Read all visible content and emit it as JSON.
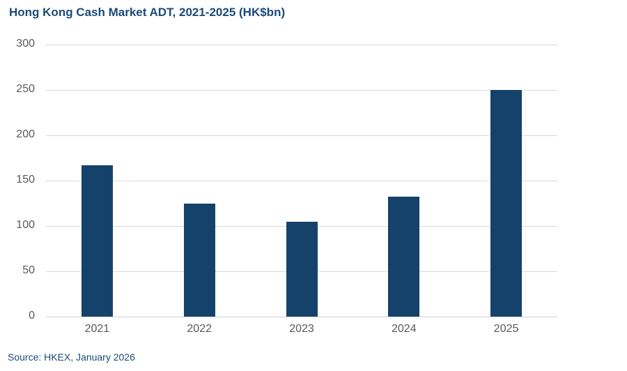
{
  "title": "Hong Kong Cash Market ADT, 2021-2025 (HK$bn)",
  "source": "Source: HKEX, January 2026",
  "colors": {
    "bar": "#14426b",
    "title": "#1b4a78",
    "grid": "#d9d9d9",
    "axis_text": "#595959"
  },
  "chart_data": {
    "type": "bar",
    "title": "Hong Kong Cash Market ADT, 2021-2025 (HK$bn)",
    "xlabel": "",
    "ylabel": "",
    "categories": [
      "2021",
      "2022",
      "2023",
      "2024",
      "2025"
    ],
    "values": [
      167,
      125,
      105,
      132,
      250
    ],
    "ylim": [
      0,
      300
    ],
    "yticks": [
      "0",
      "50",
      "100",
      "150",
      "200",
      "250",
      "300"
    ],
    "grid": true,
    "legend": null
  }
}
